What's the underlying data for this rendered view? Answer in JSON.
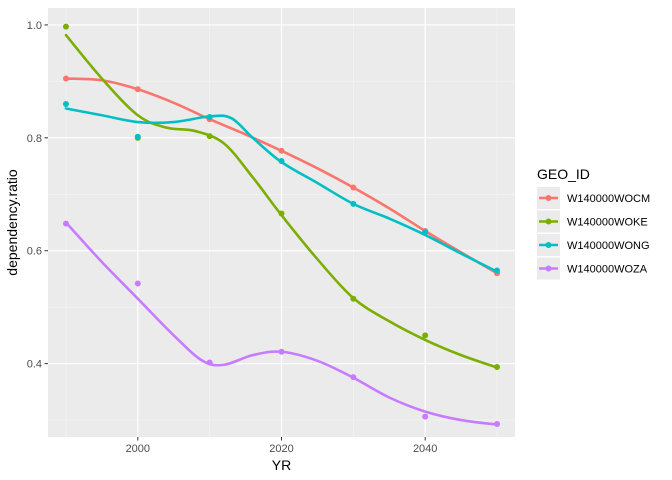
{
  "chart_data": {
    "type": "scatter",
    "xlabel": "YR",
    "ylabel": "dependency.ratio",
    "xlim": [
      1987.5,
      2052.5
    ],
    "ylim": [
      0.27,
      1.03
    ],
    "x_ticks": [
      2000,
      2020,
      2040
    ],
    "y_ticks": [
      0.4,
      0.6,
      0.8,
      1.0
    ],
    "x_tick_labels": [
      "2000",
      "2020",
      "2040"
    ],
    "y_tick_labels": [
      "0.4",
      "0.6",
      "0.8",
      "1.0"
    ],
    "grid": true,
    "legend": {
      "title": "GEO_ID",
      "placement": "right"
    },
    "trend_line": "smooth",
    "series": [
      {
        "name": "W140000WOCM",
        "color": "#F8766D",
        "points": [
          [
            1990,
            0.905
          ],
          [
            2000,
            0.886
          ],
          [
            2010,
            0.833
          ],
          [
            2020,
            0.777
          ],
          [
            2030,
            0.712
          ],
          [
            2040,
            0.635
          ],
          [
            2050,
            0.56
          ]
        ],
        "smooth": [
          [
            1990,
            0.905
          ],
          [
            1995,
            0.902
          ],
          [
            2000,
            0.886
          ],
          [
            2005,
            0.862
          ],
          [
            2010,
            0.833
          ],
          [
            2015,
            0.806
          ],
          [
            2020,
            0.777
          ],
          [
            2025,
            0.746
          ],
          [
            2030,
            0.712
          ],
          [
            2035,
            0.675
          ],
          [
            2040,
            0.635
          ],
          [
            2045,
            0.597
          ],
          [
            2050,
            0.56
          ]
        ]
      },
      {
        "name": "W140000WOKE",
        "color": "#7CAE00",
        "points": [
          [
            1990,
            0.997
          ],
          [
            2000,
            0.8
          ],
          [
            2010,
            0.803
          ],
          [
            2020,
            0.666
          ],
          [
            2030,
            0.515
          ],
          [
            2040,
            0.45
          ],
          [
            2050,
            0.394
          ]
        ],
        "smooth": [
          [
            1990,
            0.982
          ],
          [
            1995,
            0.905
          ],
          [
            2000,
            0.84
          ],
          [
            2004,
            0.818
          ],
          [
            2008,
            0.812
          ],
          [
            2012,
            0.79
          ],
          [
            2016,
            0.73
          ],
          [
            2020,
            0.663
          ],
          [
            2025,
            0.585
          ],
          [
            2030,
            0.516
          ],
          [
            2035,
            0.475
          ],
          [
            2040,
            0.442
          ],
          [
            2045,
            0.415
          ],
          [
            2050,
            0.393
          ]
        ]
      },
      {
        "name": "W140000WONG",
        "color": "#00BFC4",
        "points": [
          [
            1990,
            0.86
          ],
          [
            2000,
            0.802
          ],
          [
            2010,
            0.837
          ],
          [
            2020,
            0.759
          ],
          [
            2030,
            0.683
          ],
          [
            2040,
            0.633
          ],
          [
            2050,
            0.565
          ]
        ],
        "smooth": [
          [
            1990,
            0.852
          ],
          [
            1995,
            0.84
          ],
          [
            2000,
            0.828
          ],
          [
            2005,
            0.828
          ],
          [
            2010,
            0.838
          ],
          [
            2013,
            0.835
          ],
          [
            2016,
            0.8
          ],
          [
            2020,
            0.757
          ],
          [
            2025,
            0.72
          ],
          [
            2030,
            0.683
          ],
          [
            2035,
            0.657
          ],
          [
            2040,
            0.628
          ],
          [
            2045,
            0.595
          ],
          [
            2050,
            0.563
          ]
        ]
      },
      {
        "name": "W140000WOZA",
        "color": "#C77CFF",
        "points": [
          [
            1990,
            0.648
          ],
          [
            2000,
            0.542
          ],
          [
            2010,
            0.402
          ],
          [
            2020,
            0.421
          ],
          [
            2030,
            0.376
          ],
          [
            2040,
            0.306
          ],
          [
            2050,
            0.293
          ]
        ],
        "smooth": [
          [
            1990,
            0.65
          ],
          [
            1995,
            0.58
          ],
          [
            2000,
            0.515
          ],
          [
            2005,
            0.45
          ],
          [
            2009,
            0.405
          ],
          [
            2012,
            0.398
          ],
          [
            2016,
            0.415
          ],
          [
            2020,
            0.421
          ],
          [
            2025,
            0.405
          ],
          [
            2030,
            0.375
          ],
          [
            2035,
            0.34
          ],
          [
            2040,
            0.315
          ],
          [
            2045,
            0.3
          ],
          [
            2050,
            0.292
          ]
        ]
      }
    ]
  }
}
